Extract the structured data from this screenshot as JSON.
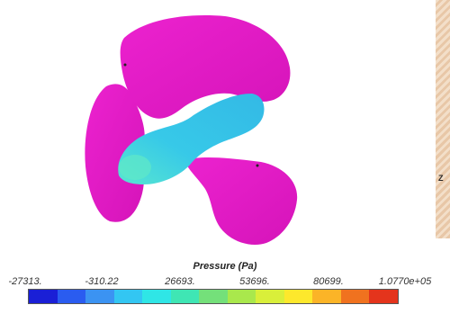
{
  "triad": {
    "z_label": "Z"
  },
  "colorbar": {
    "title": "Pressure (Pa)",
    "tick_labels": [
      "-27313.",
      "-310.22",
      "26693.",
      "53696.",
      "80699.",
      "1.0770e+05"
    ],
    "colors": [
      "#1a1fd6",
      "#2a5cf0",
      "#3b93f2",
      "#33c6f2",
      "#2fe6e6",
      "#3fe6b4",
      "#74e07a",
      "#a9e84c",
      "#d9ef3a",
      "#fde82c",
      "#fbb427",
      "#f0721f",
      "#e4341c"
    ]
  },
  "propeller": {
    "blade_color": "#e619c8",
    "hub_color": "#36c7e6"
  }
}
